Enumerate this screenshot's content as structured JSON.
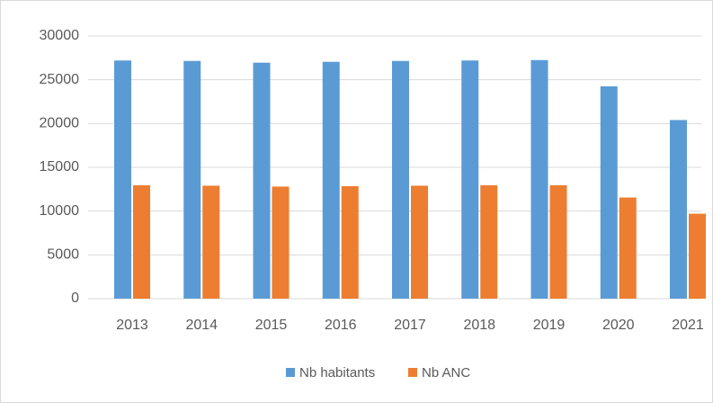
{
  "chart_data": {
    "type": "bar",
    "categories": [
      "2013",
      "2014",
      "2015",
      "2016",
      "2017",
      "2018",
      "2019",
      "2020",
      "2021"
    ],
    "series": [
      {
        "name": "Nb habitants",
        "color": "#5b9bd5",
        "values": [
          27200,
          27150,
          26950,
          27050,
          27150,
          27200,
          27250,
          24250,
          20400
        ]
      },
      {
        "name": "Nb ANC",
        "color": "#ed7d31",
        "values": [
          12950,
          12900,
          12800,
          12850,
          12900,
          12950,
          12950,
          11550,
          9700
        ]
      }
    ],
    "ylim": [
      0,
      30000
    ],
    "yticks": [
      0,
      5000,
      10000,
      15000,
      20000,
      25000,
      30000
    ],
    "grid": true,
    "legend": "bottom"
  }
}
